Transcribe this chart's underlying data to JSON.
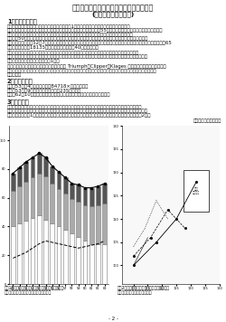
{
  "background_color": "#ffffff",
  "text_color": "#222222",
  "title_line1": "二条大麦品種『ミカモゴールデン』の育成",
  "title_line2": "(二条大麦農林－３号)",
  "s1_head": "1　育成のねらい",
  "s1_para1_lines": [
    "　熊本県のビール用大麦生産面積は全国第一位（1の１４）を占り、古くから本県の重要な基",
    "干作物の一つとなっている。しかし、選徹が毎年続けられたため、昭和55年頃から土居性のウイルス病である大麦条",
    "繋くび病が発生して大きな問題となった。熊本県では、その耐病性品種の育成に適当な能力を持",
    "ち、昭和50年、大麦条繋くび病に高度の耐病性をもつビール用品種『ミサトゴールデン』を発表して全国",
    "登録に成功し、昭和52年7月、大麦条繋くび病耀愛受机関を対象とした指定品種となった。ミサトゴールデンの全国の65",
    "年平均种子渡りは18135トンで、全国的需要の40％を占めた。"
  ],
  "s1_para2_lines": [
    "　しかし、ビール業界は原料品質のより優れた色麦品種要求を盛んにしていた。新しく、円高が進行",
    "し、国内大麦は輸入大麦に比べ８傉の国産になってた。自給率四割の指令の高まりで、対年国内生産の強化",
    "が求められた課題であった（図－1）。"
  ],
  "s1_para3_lines": [
    "　こうした状況の中で、海外のビール用品種 Triumph、Clipper、Klages 等を切っても最高水準の醒酔",
    "性考とし、ミサトゴールデン同等、大麦条繋くび病に高度耐病性をもつ『ミカモゴールデン』を育成すべくここに",
    "成功した。"
  ],
  "s2_head": "2　育成の経緬",
  "s2_lines": [
    "　昭和53年　4月　交配（險高B4718×西二条一号）",
    "　昭和53年　9月　地方名「関西二条235送」予備",
    "　昭和62年10月　農林水産省農研所、松本短期大麦委員会、督導所過参小"
  ],
  "s3_head": "3　種　　物",
  "s3_lines": [
    "　はるな二条・ミサトゴールデンと同等度の熊生で、結穂・籂粒形点ははるな二条と同程度かやや対が",
    "る。籒霘款長ははるな二条より短く、はるな二条と同程度である。大麦条繋くび病に高度耐病性で、うどん",
    "こ病に弱い（表－1）、釜子品質ははるな二条より優れ、精麦品質ははるな二条と同程度である（表－2）。"
  ],
  "author_note": "（担当者：吉岡　久）",
  "page_number": "- 2 -",
  "fig1_caption_lines": [
    "図－1　醉成用大麦の需要動向（ビール、ウイスキー",
    "用）と国産大麦の供給動向、交涋等の推移"
  ],
  "fig2_caption_lines": [
    "図－2　醉成大麦品種の醒酔力スコアと色麦品",
    "質、国内品種最高醒酔務の目途"
  ]
}
